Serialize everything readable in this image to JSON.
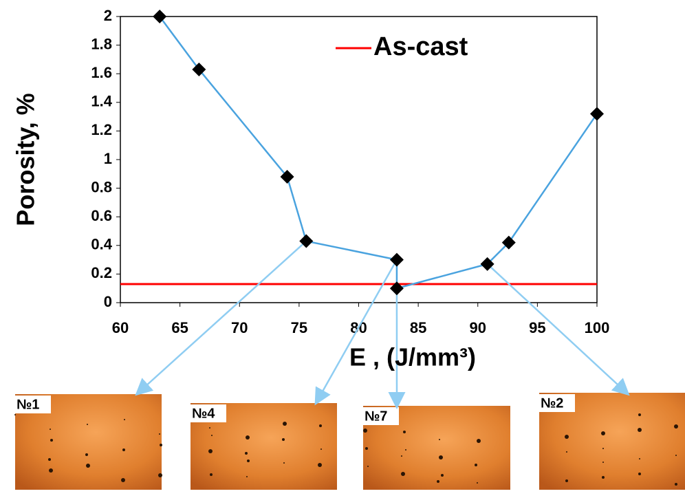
{
  "chart_data": {
    "type": "line",
    "y_label": "Porosity, %",
    "x_label": "E , (J/mm³)",
    "x": [
      63.3,
      66.6,
      74.0,
      75.6,
      83.2,
      83.2,
      90.8,
      92.6,
      100
    ],
    "series": [
      {
        "color": "#4aa3df",
        "marker_color": "#000000",
        "values": [
          2.0,
          1.63,
          0.88,
          0.43,
          0.3,
          0.1,
          0.27,
          0.42,
          1.32
        ]
      }
    ],
    "reference_lines": [
      {
        "name": "As-cast",
        "value": 0.13,
        "color": "#ff0000"
      }
    ],
    "xlim": [
      60,
      100
    ],
    "xticks": [
      60,
      65,
      70,
      75,
      80,
      85,
      90,
      95,
      100
    ],
    "ylim": [
      0,
      2
    ],
    "yticks": [
      0,
      0.2,
      0.4,
      0.6,
      0.8,
      1,
      1.2,
      1.4,
      1.6,
      1.8,
      2
    ],
    "legend_position": "upper right"
  },
  "insets": [
    "№1",
    "№4",
    "№7",
    "№2"
  ]
}
